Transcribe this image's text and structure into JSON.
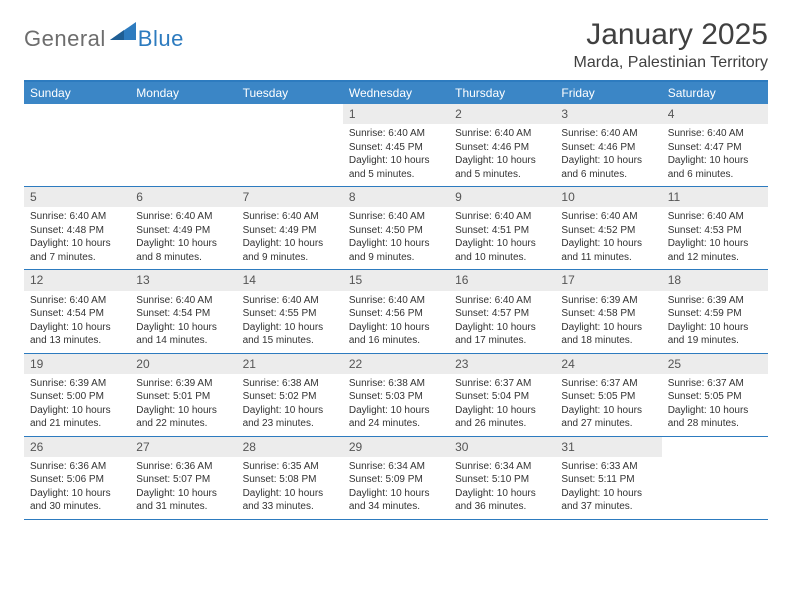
{
  "brand": {
    "name1": "General",
    "name2": "Blue"
  },
  "title": "January 2025",
  "subtitle": "Marda, Palestinian Territory",
  "colors": {
    "header_bg": "#3b86c6",
    "header_border": "#2d7bbf",
    "daynum_bg": "#ececec",
    "text": "#333333",
    "logo_gray": "#6d6d6d",
    "logo_blue": "#2d7bbf"
  },
  "weekdays": [
    "Sunday",
    "Monday",
    "Tuesday",
    "Wednesday",
    "Thursday",
    "Friday",
    "Saturday"
  ],
  "weeks": [
    [
      {
        "empty": true
      },
      {
        "empty": true
      },
      {
        "empty": true
      },
      {
        "num": "1",
        "sunrise": "6:40 AM",
        "sunset": "4:45 PM",
        "daylight": "10 hours and 5 minutes."
      },
      {
        "num": "2",
        "sunrise": "6:40 AM",
        "sunset": "4:46 PM",
        "daylight": "10 hours and 5 minutes."
      },
      {
        "num": "3",
        "sunrise": "6:40 AM",
        "sunset": "4:46 PM",
        "daylight": "10 hours and 6 minutes."
      },
      {
        "num": "4",
        "sunrise": "6:40 AM",
        "sunset": "4:47 PM",
        "daylight": "10 hours and 6 minutes."
      }
    ],
    [
      {
        "num": "5",
        "sunrise": "6:40 AM",
        "sunset": "4:48 PM",
        "daylight": "10 hours and 7 minutes."
      },
      {
        "num": "6",
        "sunrise": "6:40 AM",
        "sunset": "4:49 PM",
        "daylight": "10 hours and 8 minutes."
      },
      {
        "num": "7",
        "sunrise": "6:40 AM",
        "sunset": "4:49 PM",
        "daylight": "10 hours and 9 minutes."
      },
      {
        "num": "8",
        "sunrise": "6:40 AM",
        "sunset": "4:50 PM",
        "daylight": "10 hours and 9 minutes."
      },
      {
        "num": "9",
        "sunrise": "6:40 AM",
        "sunset": "4:51 PM",
        "daylight": "10 hours and 10 minutes."
      },
      {
        "num": "10",
        "sunrise": "6:40 AM",
        "sunset": "4:52 PM",
        "daylight": "10 hours and 11 minutes."
      },
      {
        "num": "11",
        "sunrise": "6:40 AM",
        "sunset": "4:53 PM",
        "daylight": "10 hours and 12 minutes."
      }
    ],
    [
      {
        "num": "12",
        "sunrise": "6:40 AM",
        "sunset": "4:54 PM",
        "daylight": "10 hours and 13 minutes."
      },
      {
        "num": "13",
        "sunrise": "6:40 AM",
        "sunset": "4:54 PM",
        "daylight": "10 hours and 14 minutes."
      },
      {
        "num": "14",
        "sunrise": "6:40 AM",
        "sunset": "4:55 PM",
        "daylight": "10 hours and 15 minutes."
      },
      {
        "num": "15",
        "sunrise": "6:40 AM",
        "sunset": "4:56 PM",
        "daylight": "10 hours and 16 minutes."
      },
      {
        "num": "16",
        "sunrise": "6:40 AM",
        "sunset": "4:57 PM",
        "daylight": "10 hours and 17 minutes."
      },
      {
        "num": "17",
        "sunrise": "6:39 AM",
        "sunset": "4:58 PM",
        "daylight": "10 hours and 18 minutes."
      },
      {
        "num": "18",
        "sunrise": "6:39 AM",
        "sunset": "4:59 PM",
        "daylight": "10 hours and 19 minutes."
      }
    ],
    [
      {
        "num": "19",
        "sunrise": "6:39 AM",
        "sunset": "5:00 PM",
        "daylight": "10 hours and 21 minutes."
      },
      {
        "num": "20",
        "sunrise": "6:39 AM",
        "sunset": "5:01 PM",
        "daylight": "10 hours and 22 minutes."
      },
      {
        "num": "21",
        "sunrise": "6:38 AM",
        "sunset": "5:02 PM",
        "daylight": "10 hours and 23 minutes."
      },
      {
        "num": "22",
        "sunrise": "6:38 AM",
        "sunset": "5:03 PM",
        "daylight": "10 hours and 24 minutes."
      },
      {
        "num": "23",
        "sunrise": "6:37 AM",
        "sunset": "5:04 PM",
        "daylight": "10 hours and 26 minutes."
      },
      {
        "num": "24",
        "sunrise": "6:37 AM",
        "sunset": "5:05 PM",
        "daylight": "10 hours and 27 minutes."
      },
      {
        "num": "25",
        "sunrise": "6:37 AM",
        "sunset": "5:05 PM",
        "daylight": "10 hours and 28 minutes."
      }
    ],
    [
      {
        "num": "26",
        "sunrise": "6:36 AM",
        "sunset": "5:06 PM",
        "daylight": "10 hours and 30 minutes."
      },
      {
        "num": "27",
        "sunrise": "6:36 AM",
        "sunset": "5:07 PM",
        "daylight": "10 hours and 31 minutes."
      },
      {
        "num": "28",
        "sunrise": "6:35 AM",
        "sunset": "5:08 PM",
        "daylight": "10 hours and 33 minutes."
      },
      {
        "num": "29",
        "sunrise": "6:34 AM",
        "sunset": "5:09 PM",
        "daylight": "10 hours and 34 minutes."
      },
      {
        "num": "30",
        "sunrise": "6:34 AM",
        "sunset": "5:10 PM",
        "daylight": "10 hours and 36 minutes."
      },
      {
        "num": "31",
        "sunrise": "6:33 AM",
        "sunset": "5:11 PM",
        "daylight": "10 hours and 37 minutes."
      },
      {
        "empty": true
      }
    ]
  ],
  "labels": {
    "sunrise": "Sunrise:",
    "sunset": "Sunset:",
    "daylight": "Daylight:"
  }
}
